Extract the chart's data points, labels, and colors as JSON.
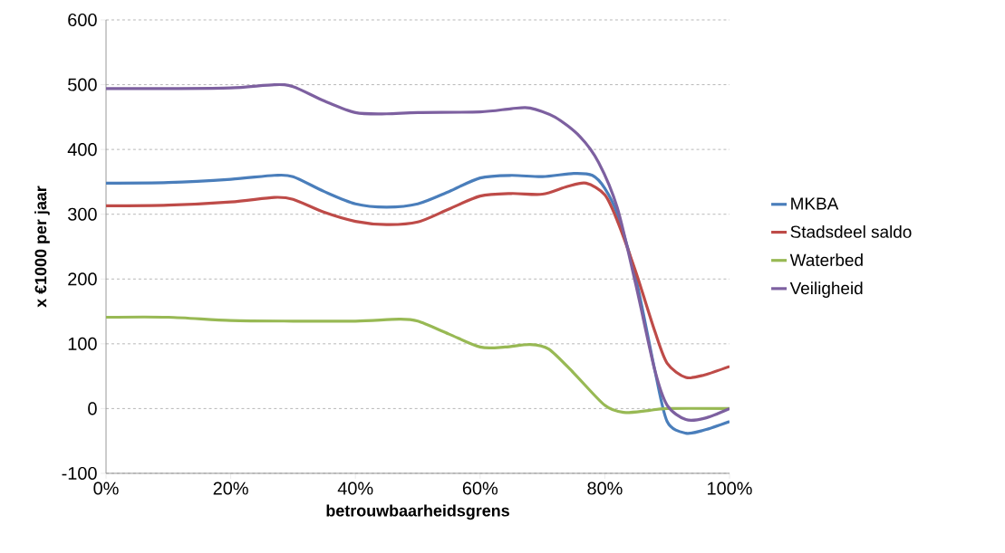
{
  "chart_data": {
    "type": "line",
    "xlabel": "betrouwbaarheidsgrens",
    "ylabel": "x €1000 per jaar",
    "xlim": [
      0,
      100
    ],
    "ylim": [
      -100,
      600
    ],
    "xticks": [
      {
        "value": 0,
        "label": "0%"
      },
      {
        "value": 20,
        "label": "20%"
      },
      {
        "value": 40,
        "label": "40%"
      },
      {
        "value": 60,
        "label": "60%"
      },
      {
        "value": 80,
        "label": "80%"
      },
      {
        "value": 100,
        "label": "100%"
      }
    ],
    "yticks": [
      -100,
      0,
      100,
      200,
      300,
      400,
      500,
      600
    ],
    "grid": "y",
    "legend": "right",
    "marker": "none",
    "line_style": "solid",
    "series": [
      {
        "name": "MKBA",
        "color": "#4a7ebb",
        "x": [
          0,
          10,
          20,
          27,
          30,
          35,
          40,
          45,
          50,
          55,
          60,
          65,
          70,
          75,
          78,
          80,
          82,
          85,
          88,
          90,
          93,
          96,
          100
        ],
        "values": [
          348,
          349,
          354,
          360,
          358,
          335,
          316,
          311,
          316,
          335,
          356,
          360,
          358,
          363,
          360,
          340,
          300,
          200,
          60,
          -20,
          -38,
          -33,
          -20
        ]
      },
      {
        "name": "Stadsdeel saldo",
        "color": "#be4b48",
        "x": [
          0,
          10,
          20,
          27,
          30,
          35,
          40,
          45,
          50,
          55,
          60,
          65,
          70,
          74,
          77,
          80,
          82,
          85,
          88,
          90,
          93,
          96,
          100
        ],
        "values": [
          313,
          314,
          319,
          326,
          323,
          303,
          289,
          284,
          288,
          308,
          328,
          332,
          331,
          343,
          348,
          330,
          290,
          210,
          120,
          70,
          48,
          52,
          65
        ]
      },
      {
        "name": "Waterbed",
        "color": "#98b954",
        "x": [
          0,
          10,
          20,
          30,
          40,
          47,
          50,
          55,
          60,
          64,
          68,
          71,
          75,
          80,
          83,
          87,
          90,
          100
        ],
        "values": [
          141,
          141,
          136,
          135,
          135,
          138,
          135,
          115,
          95,
          95,
          99,
          92,
          55,
          5,
          -6,
          -3,
          0,
          0
        ]
      },
      {
        "name": "Veiligheid",
        "color": "#7d60a0",
        "x": [
          0,
          10,
          20,
          27,
          30,
          35,
          40,
          45,
          50,
          60,
          65,
          68,
          72,
          76,
          79,
          82,
          85,
          88,
          90,
          93,
          96,
          100
        ],
        "values": [
          494,
          494,
          495,
          500,
          497,
          475,
          457,
          455,
          457,
          458,
          463,
          464,
          450,
          420,
          380,
          310,
          190,
          60,
          5,
          -17,
          -15,
          0
        ]
      }
    ]
  }
}
